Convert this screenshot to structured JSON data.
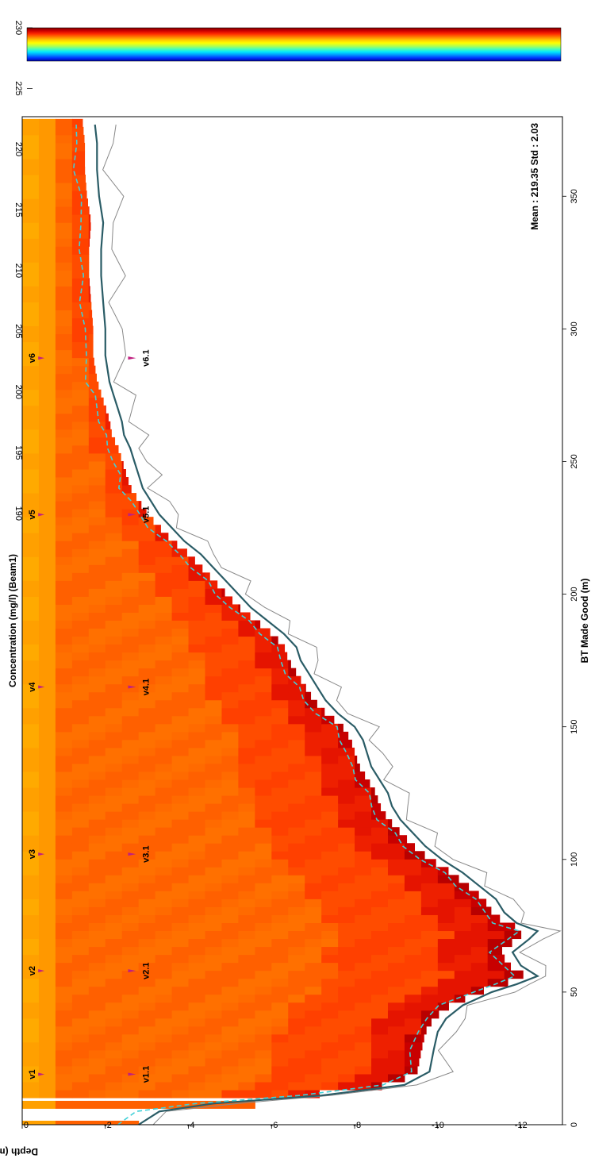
{
  "chart_data": {
    "type": "heatmap",
    "title": "Concentration (mg/l) (Beam1)",
    "xlabel": "BT Made Good (m)",
    "ylabel": "Depth (m)",
    "stats": "Mean : 219.35 Std : 2.03",
    "xlim": [
      0,
      380
    ],
    "ylim": [
      -13,
      0
    ],
    "x_ticks": [
      0,
      50,
      100,
      150,
      200,
      250,
      300,
      350
    ],
    "y_ticks": [
      0,
      -2,
      -4,
      -6,
      -8,
      -10,
      -12
    ],
    "colorbar": {
      "min": 186,
      "max": 230,
      "ticks": [
        230,
        225,
        220,
        215,
        210,
        205,
        200,
        195,
        190
      ],
      "colors": [
        "#7a0000",
        "#cc0000",
        "#ff2a00",
        "#ff7a00",
        "#ffc800",
        "#ffff00",
        "#b4ff4c",
        "#4cffb4",
        "#00e6ff",
        "#0090ff",
        "#0032ff",
        "#000096"
      ]
    },
    "bottom_profile": [
      [
        0,
        -2.8
      ],
      [
        5,
        -3.3
      ],
      [
        8,
        -4.6
      ],
      [
        11,
        -7.2
      ],
      [
        15,
        -9.2
      ],
      [
        20,
        -9.8
      ],
      [
        28,
        -9.9
      ],
      [
        35,
        -10.0
      ],
      [
        40,
        -10.2
      ],
      [
        45,
        -10.6
      ],
      [
        50,
        -11.3
      ],
      [
        53,
        -11.9
      ],
      [
        56,
        -12.4
      ],
      [
        60,
        -12.0
      ],
      [
        65,
        -11.8
      ],
      [
        70,
        -12.2
      ],
      [
        73,
        -12.4
      ],
      [
        76,
        -11.9
      ],
      [
        80,
        -11.6
      ],
      [
        85,
        -11.4
      ],
      [
        90,
        -11.0
      ],
      [
        95,
        -10.6
      ],
      [
        100,
        -10.1
      ],
      [
        105,
        -9.7
      ],
      [
        110,
        -9.4
      ],
      [
        115,
        -9.1
      ],
      [
        120,
        -8.9
      ],
      [
        125,
        -8.8
      ],
      [
        130,
        -8.6
      ],
      [
        135,
        -8.4
      ],
      [
        140,
        -8.3
      ],
      [
        145,
        -8.2
      ],
      [
        150,
        -8.0
      ],
      [
        155,
        -7.6
      ],
      [
        160,
        -7.3
      ],
      [
        165,
        -7.1
      ],
      [
        170,
        -6.9
      ],
      [
        175,
        -6.7
      ],
      [
        180,
        -6.6
      ],
      [
        185,
        -6.3
      ],
      [
        190,
        -5.9
      ],
      [
        195,
        -5.5
      ],
      [
        200,
        -5.2
      ],
      [
        205,
        -4.9
      ],
      [
        210,
        -4.6
      ],
      [
        215,
        -4.3
      ],
      [
        220,
        -3.9
      ],
      [
        225,
        -3.6
      ],
      [
        230,
        -3.3
      ],
      [
        235,
        -3.1
      ],
      [
        240,
        -2.9
      ],
      [
        245,
        -2.8
      ],
      [
        250,
        -2.7
      ],
      [
        255,
        -2.6
      ],
      [
        260,
        -2.45
      ],
      [
        265,
        -2.4
      ],
      [
        270,
        -2.3
      ],
      [
        275,
        -2.2
      ],
      [
        280,
        -2.1
      ],
      [
        290,
        -2.0
      ],
      [
        300,
        -2.0
      ],
      [
        310,
        -1.95
      ],
      [
        320,
        -1.9
      ],
      [
        330,
        -1.9
      ],
      [
        340,
        -1.95
      ],
      [
        350,
        -1.85
      ],
      [
        360,
        -1.8
      ],
      [
        370,
        -1.8
      ],
      [
        377,
        -1.75
      ]
    ],
    "stations_top": [
      {
        "label": "v1",
        "x": 19
      },
      {
        "label": "v2",
        "x": 58
      },
      {
        "label": "v3",
        "x": 102
      },
      {
        "label": "v4",
        "x": 165
      },
      {
        "label": "v5",
        "x": 230
      },
      {
        "label": "v6",
        "x": 289
      }
    ],
    "stations_mid": [
      {
        "label": "v1.1",
        "x": 19
      },
      {
        "label": "v2.1",
        "x": 58
      },
      {
        "label": "v3.1",
        "x": 102
      },
      {
        "label": "v4.1",
        "x": 165
      },
      {
        "label": "v5.1",
        "x": 230
      },
      {
        "label": "v6.1",
        "x": 289
      }
    ]
  }
}
